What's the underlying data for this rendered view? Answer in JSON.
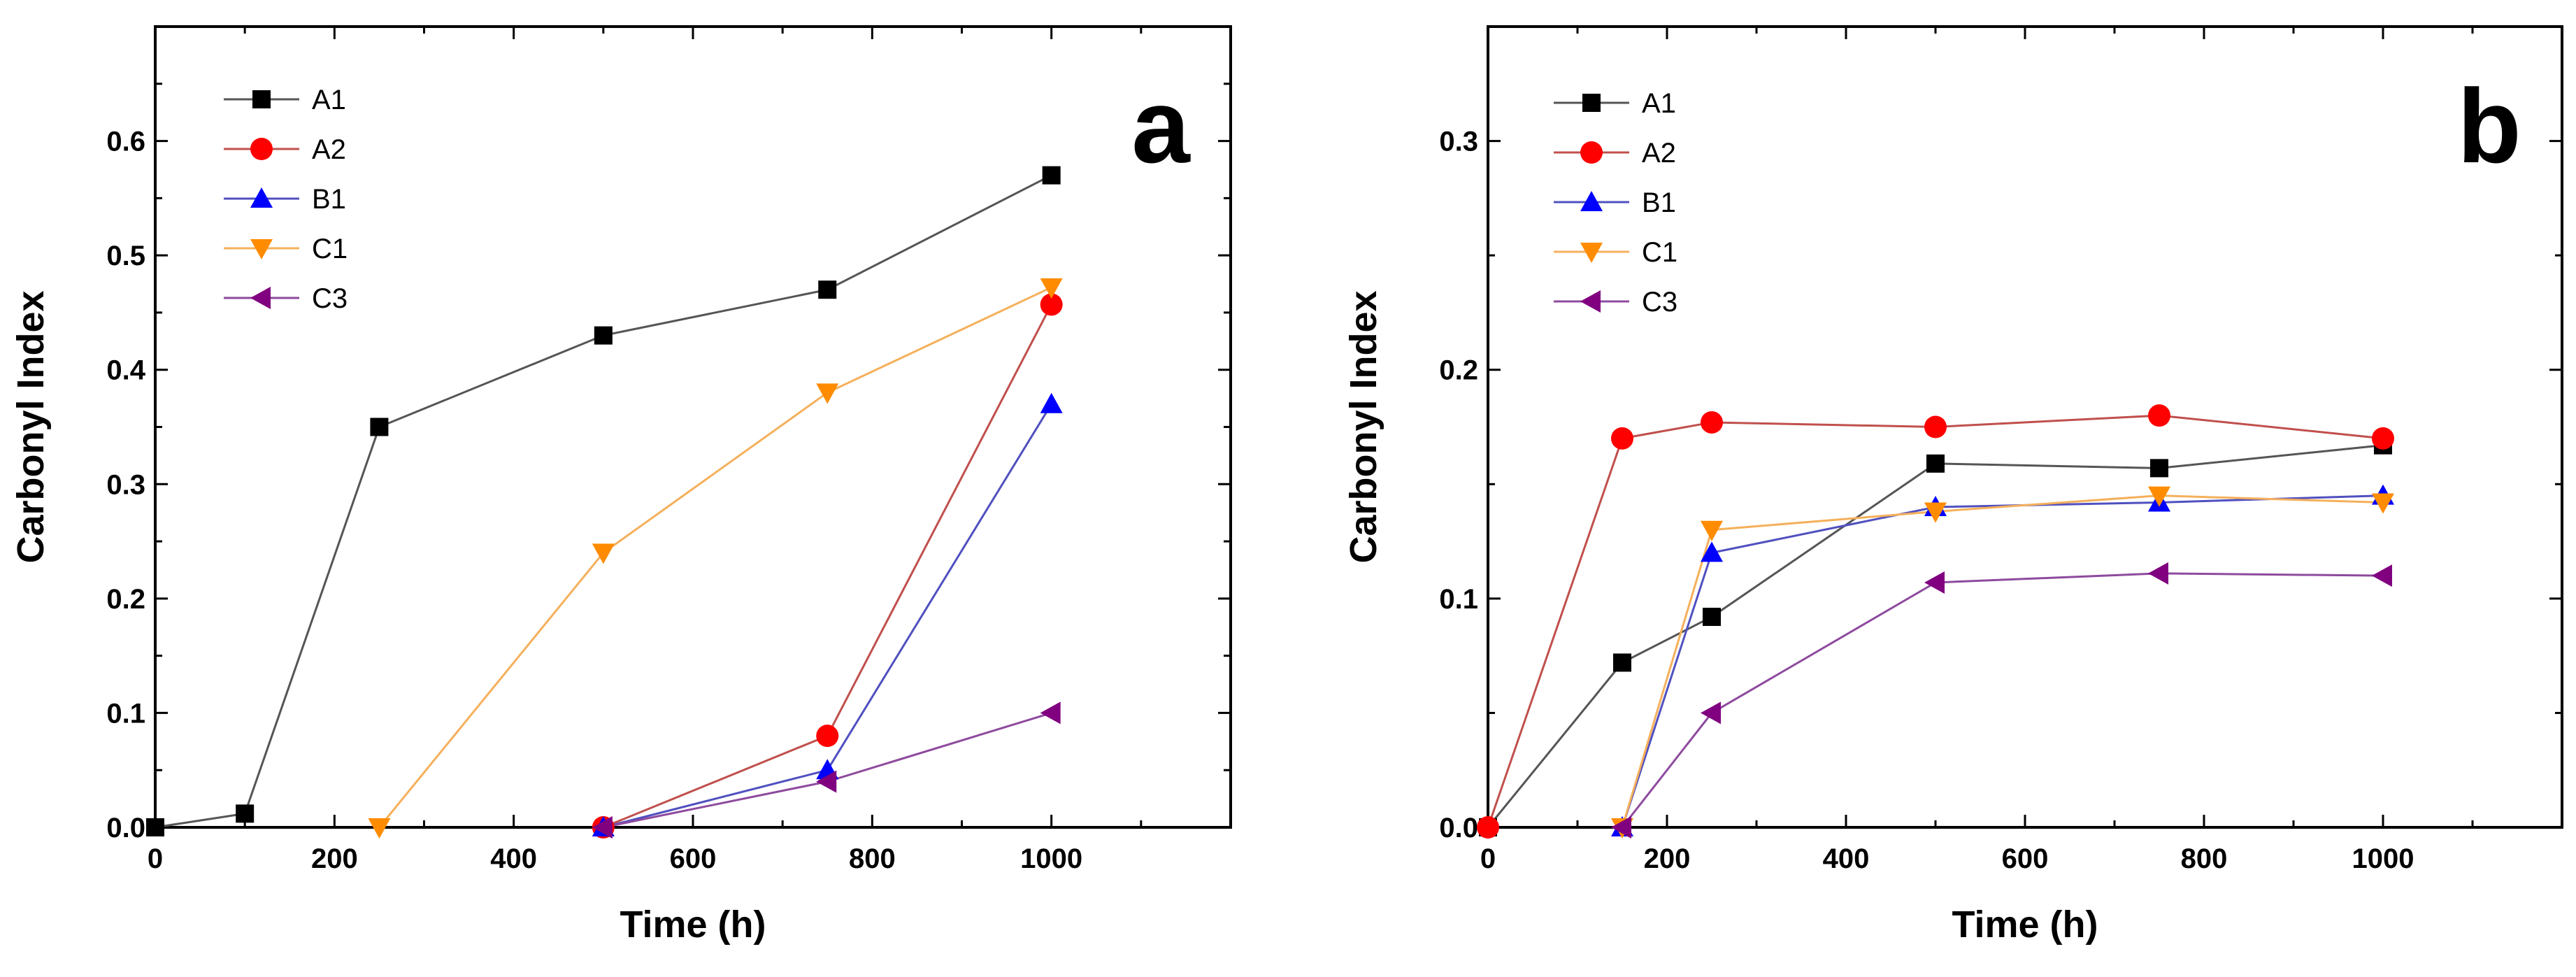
{
  "chart_data": [
    {
      "type": "line",
      "panel_label": "a",
      "xlabel": "Time (h)",
      "ylabel": "Carbonyl Index",
      "xlim": [
        0,
        1200
      ],
      "ylim": [
        0,
        0.7
      ],
      "xticks": [
        0,
        200,
        400,
        600,
        800,
        1000
      ],
      "xtick_labels": [
        "0",
        "200",
        "400",
        "600",
        "800",
        "1000"
      ],
      "yticks": [
        0,
        0.1,
        0.2,
        0.3,
        0.4,
        0.5,
        0.6
      ],
      "ytick_labels": [
        "0.0",
        "0.1",
        "0.2",
        "0.3",
        "0.4",
        "0.5",
        "0.6"
      ],
      "legend": "top-left",
      "series": [
        {
          "name": "A1",
          "color": "#000000",
          "line_color": "#555555",
          "marker": "square",
          "x": [
            0,
            100,
            250,
            500,
            750,
            1000
          ],
          "values": [
            0,
            0.012,
            0.35,
            0.43,
            0.47,
            0.57
          ]
        },
        {
          "name": "A2",
          "color": "#ff0000",
          "line_color": "#c0504d",
          "marker": "circle",
          "x": [
            500,
            750,
            1000
          ],
          "values": [
            0,
            0.08,
            0.457
          ]
        },
        {
          "name": "B1",
          "color": "#0000ff",
          "line_color": "#5050c0",
          "marker": "triangle-up",
          "x": [
            500,
            750,
            1000
          ],
          "values": [
            0,
            0.05,
            0.37
          ]
        },
        {
          "name": "C1",
          "color": "#ff8c00",
          "line_color": "#f5b05c",
          "marker": "triangle-down",
          "x": [
            250,
            500,
            750,
            1000
          ],
          "values": [
            0,
            0.24,
            0.38,
            0.472
          ]
        },
        {
          "name": "C3",
          "color": "#800080",
          "line_color": "#8e4a9e",
          "marker": "triangle-left",
          "x": [
            500,
            750,
            1000
          ],
          "values": [
            0,
            0.04,
            0.1
          ]
        }
      ]
    },
    {
      "type": "line",
      "panel_label": "b",
      "xlabel": "Time (h)",
      "ylabel": "Carbonyl Index",
      "xlim": [
        0,
        1200
      ],
      "ylim": [
        0,
        0.35
      ],
      "xticks": [
        0,
        200,
        400,
        600,
        800,
        1000
      ],
      "xtick_labels": [
        "0",
        "200",
        "400",
        "600",
        "800",
        "1000"
      ],
      "yticks": [
        0,
        0.1,
        0.2,
        0.3
      ],
      "ytick_labels": [
        "0.0",
        "0.1",
        "0.2",
        "0.3"
      ],
      "legend": "top-left",
      "series": [
        {
          "name": "A1",
          "color": "#000000",
          "line_color": "#555555",
          "marker": "square",
          "x": [
            0,
            150,
            250,
            500,
            750,
            1000
          ],
          "values": [
            0,
            0.072,
            0.092,
            0.159,
            0.157,
            0.167
          ]
        },
        {
          "name": "A2",
          "color": "#ff0000",
          "line_color": "#c0504d",
          "marker": "circle",
          "x": [
            0,
            150,
            250,
            500,
            750,
            1000
          ],
          "values": [
            0,
            0.17,
            0.177,
            0.175,
            0.18,
            0.17
          ]
        },
        {
          "name": "B1",
          "color": "#0000ff",
          "line_color": "#5050c0",
          "marker": "triangle-up",
          "x": [
            150,
            250,
            500,
            750,
            1000
          ],
          "values": [
            0,
            0.12,
            0.14,
            0.142,
            0.145
          ]
        },
        {
          "name": "C1",
          "color": "#ff8c00",
          "line_color": "#f5b05c",
          "marker": "triangle-down",
          "x": [
            150,
            250,
            500,
            750,
            1000
          ],
          "values": [
            0,
            0.13,
            0.138,
            0.145,
            0.142
          ]
        },
        {
          "name": "C3",
          "color": "#800080",
          "line_color": "#8e4a9e",
          "marker": "triangle-left",
          "x": [
            150,
            250,
            500,
            750,
            1000
          ],
          "values": [
            0,
            0.05,
            0.107,
            0.111,
            0.11
          ]
        }
      ]
    }
  ]
}
